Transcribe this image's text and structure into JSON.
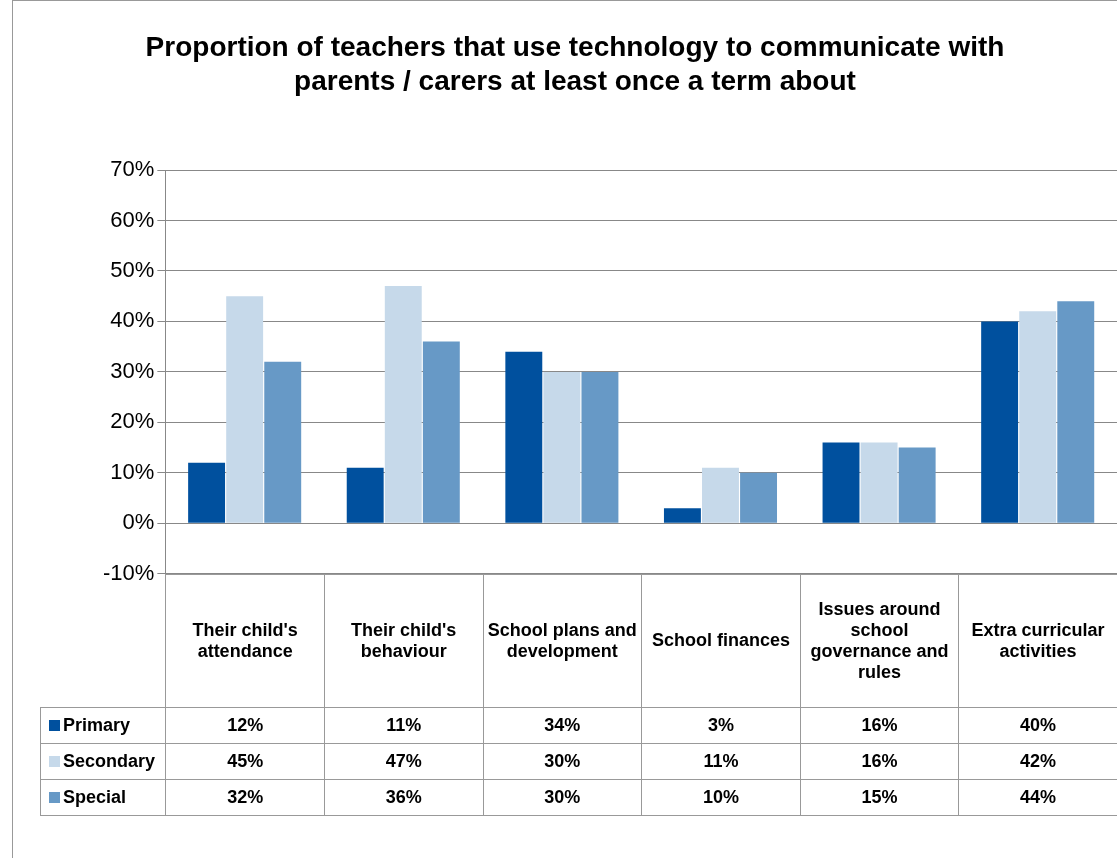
{
  "chart_data": {
    "type": "bar",
    "title": "Proportion of teachers that use technology to communicate with parents / carers at least once a term about",
    "categories": [
      "Their child's attendance",
      "Their child's behaviour",
      "School plans and development",
      "School finances",
      "Issues around school governance and rules",
      "Extra curricular activities"
    ],
    "series": [
      {
        "name": "Primary",
        "color": "#00509e",
        "values": [
          12,
          11,
          34,
          3,
          16,
          40
        ],
        "value_labels": [
          "12%",
          "11%",
          "34%",
          "3%",
          "16%",
          "40%"
        ]
      },
      {
        "name": "Secondary",
        "color": "#c6d9ea",
        "values": [
          45,
          47,
          30,
          11,
          16,
          42
        ],
        "value_labels": [
          "45%",
          "47%",
          "30%",
          "11%",
          "16%",
          "42%"
        ]
      },
      {
        "name": "Special",
        "color": "#6799c6",
        "values": [
          32,
          36,
          30,
          10,
          15,
          44
        ],
        "value_labels": [
          "32%",
          "36%",
          "30%",
          "10%",
          "15%",
          "44%"
        ]
      }
    ],
    "ylim": [
      -10,
      70
    ],
    "yticks": [
      {
        "value": -10,
        "label": "-10%"
      },
      {
        "value": 0,
        "label": "0%"
      },
      {
        "value": 10,
        "label": "10%"
      },
      {
        "value": 20,
        "label": "20%"
      },
      {
        "value": 30,
        "label": "30%"
      },
      {
        "value": 40,
        "label": "40%"
      },
      {
        "value": 50,
        "label": "50%"
      },
      {
        "value": 60,
        "label": "60%"
      },
      {
        "value": 70,
        "label": "70%"
      }
    ],
    "grid": "y",
    "legend": "bottom"
  }
}
